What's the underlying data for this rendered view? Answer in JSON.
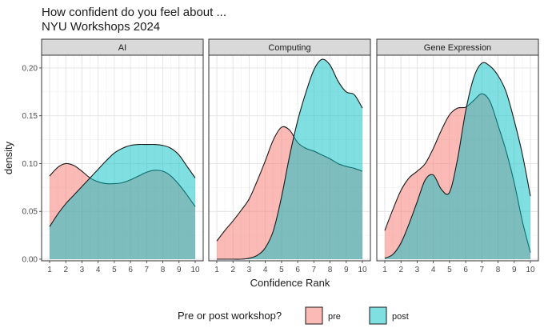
{
  "chart_data": {
    "type": "area",
    "title_lines": [
      "How confident do you feel about ...",
      "NYU Workshops 2024"
    ],
    "xlabel": "Confidence Rank",
    "ylabel": "density",
    "xlim": [
      1,
      10
    ],
    "ylim": [
      0,
      0.21
    ],
    "x_ticks": [
      1,
      2,
      3,
      4,
      5,
      6,
      7,
      8,
      9,
      10
    ],
    "y_ticks": [
      0.0,
      0.05,
      0.1,
      0.15,
      0.2
    ],
    "y_tick_labels": [
      "0.00",
      "0.05",
      "0.10",
      "0.15",
      "0.20"
    ],
    "grid": true,
    "legend": {
      "title": "Pre or post workshop?",
      "placement": "bottom",
      "entries": [
        {
          "key": "pre",
          "label": "pre",
          "color": "#F8766D"
        },
        {
          "key": "post",
          "label": "post",
          "color": "#00BFC4"
        }
      ]
    },
    "panels": [
      {
        "strip": "AI",
        "series": [
          {
            "key": "pre",
            "x": [
              1,
              1.5,
              2,
              2.5,
              3,
              3.5,
              4,
              4.5,
              5,
              5.5,
              6,
              6.5,
              7,
              7.5,
              8,
              8.5,
              9,
              9.5,
              10
            ],
            "y": [
              0.087,
              0.096,
              0.1,
              0.098,
              0.092,
              0.085,
              0.081,
              0.079,
              0.079,
              0.08,
              0.083,
              0.087,
              0.091,
              0.093,
              0.092,
              0.087,
              0.078,
              0.067,
              0.055
            ]
          },
          {
            "key": "post",
            "x": [
              1,
              1.5,
              2,
              2.5,
              3,
              3.5,
              4,
              4.5,
              5,
              5.5,
              6,
              6.5,
              7,
              7.5,
              8,
              8.5,
              9,
              9.5,
              10
            ],
            "y": [
              0.034,
              0.047,
              0.058,
              0.067,
              0.076,
              0.085,
              0.094,
              0.103,
              0.111,
              0.116,
              0.119,
              0.12,
              0.12,
              0.12,
              0.119,
              0.116,
              0.109,
              0.097,
              0.085
            ]
          }
        ]
      },
      {
        "strip": "Computing",
        "series": [
          {
            "key": "pre",
            "x": [
              1,
              1.5,
              2,
              2.5,
              3,
              3.5,
              4,
              4.5,
              5,
              5.5,
              6,
              6.5,
              7,
              7.5,
              8,
              8.5,
              9,
              9.5,
              10
            ],
            "y": [
              0.019,
              0.03,
              0.04,
              0.051,
              0.063,
              0.082,
              0.103,
              0.125,
              0.138,
              0.135,
              0.122,
              0.116,
              0.113,
              0.109,
              0.105,
              0.1,
              0.097,
              0.095,
              0.092
            ]
          },
          {
            "key": "post",
            "x": [
              1,
              1.5,
              2,
              2.5,
              3,
              3.5,
              4,
              4.5,
              5,
              5.5,
              6,
              6.5,
              7,
              7.5,
              8,
              8.5,
              9,
              9.5,
              10
            ],
            "y": [
              0.0,
              0.0,
              0.0,
              0.0,
              0.001,
              0.004,
              0.012,
              0.03,
              0.065,
              0.108,
              0.145,
              0.174,
              0.198,
              0.209,
              0.203,
              0.186,
              0.175,
              0.172,
              0.158
            ]
          }
        ]
      },
      {
        "strip": "Gene Expression",
        "series": [
          {
            "key": "pre",
            "x": [
              1,
              1.5,
              2,
              2.5,
              3,
              3.5,
              4,
              4.5,
              5,
              5.5,
              6,
              6.5,
              7,
              7.5,
              8,
              8.5,
              9,
              9.5,
              10
            ],
            "y": [
              0.03,
              0.052,
              0.072,
              0.085,
              0.092,
              0.1,
              0.116,
              0.135,
              0.151,
              0.158,
              0.159,
              0.166,
              0.173,
              0.165,
              0.14,
              0.113,
              0.08,
              0.04,
              0.007
            ]
          },
          {
            "key": "post",
            "x": [
              1,
              1.5,
              2,
              2.5,
              3,
              3.5,
              4,
              4.5,
              5,
              5.5,
              6,
              6.5,
              7,
              7.5,
              8,
              8.5,
              9,
              9.5,
              10
            ],
            "y": [
              0.001,
              0.005,
              0.017,
              0.037,
              0.06,
              0.083,
              0.088,
              0.073,
              0.07,
              0.105,
              0.155,
              0.19,
              0.205,
              0.202,
              0.192,
              0.175,
              0.145,
              0.11,
              0.066
            ]
          }
        ]
      }
    ]
  }
}
